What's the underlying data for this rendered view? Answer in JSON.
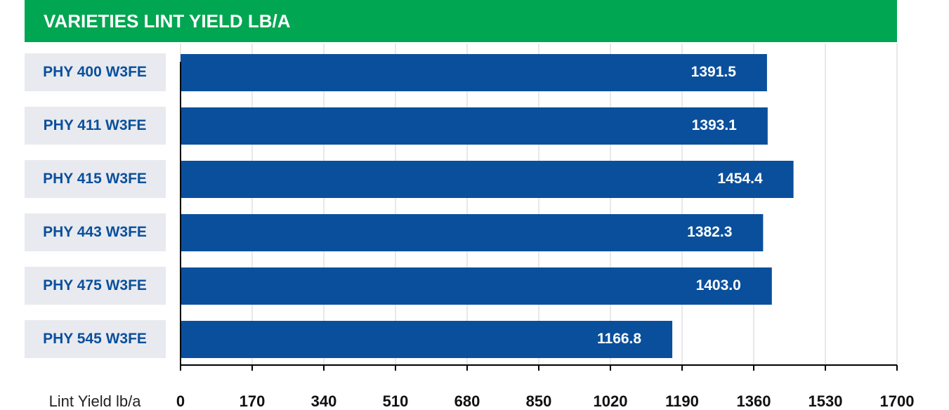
{
  "chart_data": {
    "type": "bar",
    "orientation": "horizontal",
    "title": "VARIETIES LINT YIELD LB/A",
    "x_label": "Lint Yield lb/a",
    "categories": [
      "PHY 400 W3FE",
      "PHY 411 W3FE",
      "PHY 415 W3FE",
      "PHY 443 W3FE",
      "PHY 475 W3FE",
      "PHY 545 W3FE"
    ],
    "values": [
      1391.5,
      1393.1,
      1454.4,
      1382.3,
      1403.0,
      1166.8
    ],
    "value_labels": [
      "1391.5",
      "1393.1",
      "1454.4",
      "1382.3",
      "1403.0",
      "1166.8"
    ],
    "color": "#0a4f9c",
    "title_color": "#00a651",
    "xlim": [
      0,
      1700
    ],
    "xticks": [
      0,
      170,
      340,
      510,
      680,
      850,
      1020,
      1190,
      1360,
      1530,
      1700
    ],
    "grid": true
  }
}
